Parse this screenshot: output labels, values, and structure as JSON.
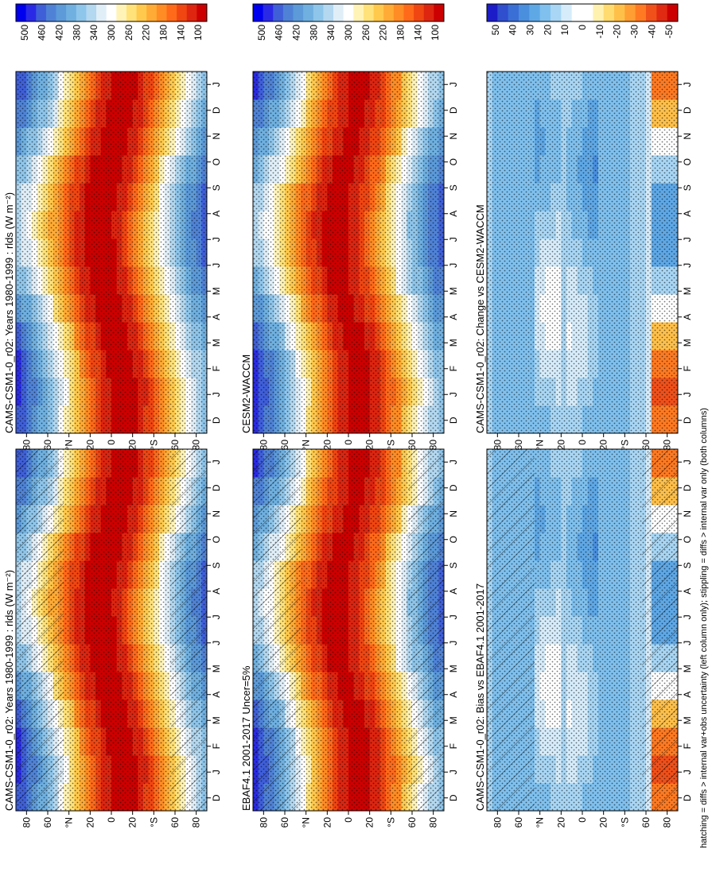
{
  "figure": {
    "footnote": "hatching = diffs > internal var+obs uncertainty (left column only); stippling = diffs > internal var only (both columns)"
  },
  "colors": {
    "mean_scale": [
      "#0000ee",
      "#2a2ae6",
      "#3f5fd9",
      "#4f82d6",
      "#5c9ad9",
      "#6fb0e0",
      "#8ec5ea",
      "#b3d8f0",
      "#e0eef8",
      "#ffffff",
      "#fff3b8",
      "#ffe27a",
      "#ffc94d",
      "#ffab35",
      "#ff8c25",
      "#ff6a1a",
      "#f04612",
      "#dd2510",
      "#cc0000"
    ],
    "diff_scale": [
      "#1c1cc8",
      "#2f4fcf",
      "#3a6fd6",
      "#4a8ede",
      "#5fa8e6",
      "#7fc0ee",
      "#a8d6f4",
      "#d6ecfa",
      "#ffffff",
      "#ffffff",
      "#fff2b0",
      "#ffdb70",
      "#ffc04a",
      "#ff9e33",
      "#ff7a22",
      "#f0501a",
      "#e02a12",
      "#cc0000"
    ]
  },
  "chart_data": [
    {
      "id": "model-mean",
      "type": "heatmap",
      "title": "CAMS-CSM1-0_r02: Years 1980-1999 : rlds (W m⁻²)",
      "x_ticks": [
        "D",
        "J",
        "F",
        "M",
        "A",
        "M",
        "J",
        "J",
        "A",
        "S",
        "O",
        "N",
        "D",
        "J"
      ],
      "y_ticks": [
        "80",
        "60",
        "°N",
        "20",
        "0",
        "20",
        "°S",
        "60",
        "80"
      ],
      "y_range": [
        -90,
        90
      ],
      "colorbar_ticks": [
        "500",
        "460",
        "420",
        "380",
        "340",
        "300",
        "260",
        "220",
        "180",
        "140",
        "100"
      ],
      "value_range": [
        80,
        520
      ],
      "hatching": true,
      "stippling": true
    },
    {
      "id": "observations",
      "type": "heatmap",
      "title": "EBAF4.1 2001-2017 Uncer=5%",
      "x_ticks": [
        "D",
        "J",
        "F",
        "M",
        "A",
        "M",
        "J",
        "J",
        "A",
        "S",
        "O",
        "N",
        "D",
        "J"
      ],
      "y_ticks": [
        "80",
        "60",
        "°N",
        "20",
        "0",
        "20",
        "°S",
        "60",
        "80"
      ],
      "y_range": [
        -90,
        90
      ],
      "colorbar_ticks": [
        "500",
        "460",
        "420",
        "380",
        "340",
        "300",
        "260",
        "220",
        "180",
        "140",
        "100"
      ],
      "value_range": [
        80,
        520
      ],
      "hatching": true,
      "stippling": true
    },
    {
      "id": "bias",
      "type": "heatmap",
      "title": "CAMS-CSM1-0_r02: Bias vs EBAF4.1 2001-2017",
      "x_ticks": [
        "D",
        "J",
        "F",
        "M",
        "A",
        "M",
        "J",
        "J",
        "A",
        "S",
        "O",
        "N",
        "D",
        "J"
      ],
      "y_ticks": [
        "80",
        "60",
        "°N",
        "20",
        "0",
        "20",
        "°S",
        "60",
        "80"
      ],
      "y_range": [
        -90,
        90
      ],
      "colorbar_ticks": [
        "50",
        "40",
        "30",
        "20",
        "10",
        "0",
        "-10",
        "-20",
        "-30",
        "-40",
        "-50"
      ],
      "value_range": [
        -55,
        55
      ],
      "hatching": true,
      "stippling": true
    },
    {
      "id": "model-mean-2",
      "type": "heatmap",
      "title": "CAMS-CSM1-0_r02: Years 1980-1999 : rlds (W m⁻²)",
      "x_ticks": [
        "D",
        "J",
        "F",
        "M",
        "A",
        "M",
        "J",
        "J",
        "A",
        "S",
        "O",
        "N",
        "D",
        "J"
      ],
      "y_ticks": [
        "80",
        "60",
        "°N",
        "20",
        "0",
        "20",
        "°S",
        "60",
        "80"
      ],
      "y_range": [
        -90,
        90
      ],
      "colorbar_ticks": [
        "500",
        "460",
        "420",
        "380",
        "340",
        "300",
        "260",
        "220",
        "180",
        "140",
        "100"
      ],
      "value_range": [
        80,
        520
      ],
      "hatching": false,
      "stippling": true
    },
    {
      "id": "reference-model",
      "type": "heatmap",
      "title": "CESM2-WACCM",
      "x_ticks": [
        "D",
        "J",
        "F",
        "M",
        "A",
        "M",
        "J",
        "J",
        "A",
        "S",
        "O",
        "N",
        "D",
        "J"
      ],
      "y_ticks": [
        "80",
        "60",
        "°N",
        "20",
        "0",
        "20",
        "°S",
        "60",
        "80"
      ],
      "y_range": [
        -90,
        90
      ],
      "colorbar_ticks": [
        "500",
        "460",
        "420",
        "380",
        "340",
        "300",
        "260",
        "220",
        "180",
        "140",
        "100"
      ],
      "value_range": [
        80,
        520
      ],
      "hatching": false,
      "stippling": true
    },
    {
      "id": "change",
      "type": "heatmap",
      "title": "CAMS-CSM1-0_r02: Change vs CESM2-WACCM",
      "x_ticks": [
        "D",
        "J",
        "F",
        "M",
        "A",
        "M",
        "J",
        "J",
        "A",
        "S",
        "O",
        "N",
        "D",
        "J"
      ],
      "y_ticks": [
        "80",
        "60",
        "°N",
        "20",
        "0",
        "20",
        "°S",
        "60",
        "80"
      ],
      "y_range": [
        -90,
        90
      ],
      "colorbar_ticks": [
        "50",
        "40",
        "30",
        "20",
        "10",
        "0",
        "-10",
        "-20",
        "-30",
        "-40",
        "-50"
      ],
      "value_range": [
        -55,
        55
      ],
      "hatching": false,
      "stippling": true
    }
  ]
}
